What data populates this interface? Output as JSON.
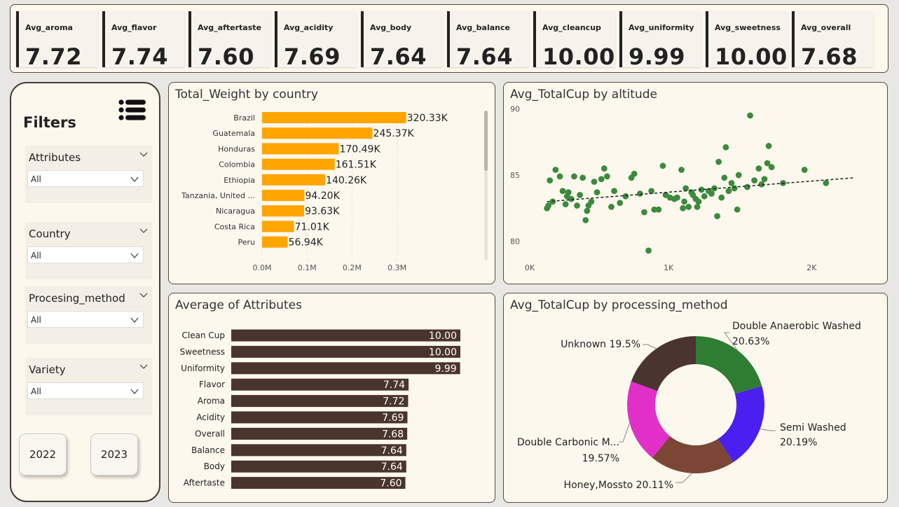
{
  "kpis": [
    {
      "label": "Avg_aroma",
      "value": "7.72"
    },
    {
      "label": "Avg_flavor",
      "value": "7.74"
    },
    {
      "label": "Avg_aftertaste",
      "value": "7.60"
    },
    {
      "label": "Avg_acidity",
      "value": "7.69"
    },
    {
      "label": "Avg_body",
      "value": "7.64"
    },
    {
      "label": "Avg_balance",
      "value": "7.64"
    },
    {
      "label": "Avg_cleancup",
      "value": "10.00"
    },
    {
      "label": "Avg_uniformity",
      "value": "9.99"
    },
    {
      "label": "Avg_sweetness",
      "value": "10.00"
    },
    {
      "label": "Avg_overall",
      "value": "7.68"
    }
  ],
  "filters": {
    "title": "Filters",
    "icon": "list-icon",
    "slicers": [
      {
        "title": "Attributes",
        "value": "All"
      },
      {
        "title": "Country",
        "value": "All"
      },
      {
        "title": "Procesing_method",
        "value": "All"
      },
      {
        "title": "Variety",
        "value": "All"
      }
    ],
    "years": [
      "2022",
      "2023"
    ]
  },
  "panels": {
    "weight": {
      "title": "Total_Weight by country"
    },
    "scatter": {
      "title": "Avg_TotalCup by altitude"
    },
    "attributes": {
      "title": "Average of Attributes"
    },
    "donut": {
      "title": "Avg_TotalCup by processing_method"
    }
  },
  "chart_data": [
    {
      "type": "bar",
      "orientation": "horizontal",
      "title": "Total_Weight by country",
      "categories": [
        "Brazil",
        "Guatemala",
        "Honduras",
        "Colombia",
        "Ethiopia",
        "Tanzania, United ...",
        "Nicaragua",
        "Costa Rica",
        "Peru"
      ],
      "values": [
        320330,
        245370,
        170490,
        161510,
        140260,
        94200,
        93630,
        71010,
        56940
      ],
      "data_labels": [
        "320.33K",
        "245.37K",
        "170.49K",
        "161.51K",
        "140.26K",
        "94.20K",
        "93.63K",
        "71.01K",
        "56.94K"
      ],
      "xticks": [
        "0.0M",
        "0.1M",
        "0.2M",
        "0.3M"
      ],
      "xlim": [
        0,
        380000
      ],
      "color": "#ffa500",
      "grid": true
    },
    {
      "type": "scatter",
      "title": "Avg_TotalCup by altitude",
      "xticks": [
        "0K",
        "1K",
        "2K"
      ],
      "yticks": [
        "80",
        "85",
        "90"
      ],
      "xlim": [
        0,
        2400
      ],
      "ylim": [
        78.5,
        90.5
      ],
      "color": "#3d8a3d",
      "trendline": {
        "style": "dashed",
        "x": [
          150,
          2300
        ],
        "y": [
          83.0,
          84.8
        ]
      },
      "points": [
        [
          150,
          82.5
        ],
        [
          160,
          82.7
        ],
        [
          170,
          84.6
        ],
        [
          190,
          83.0
        ],
        [
          210,
          85.4
        ],
        [
          240,
          84.9
        ],
        [
          260,
          83.8
        ],
        [
          280,
          82.8
        ],
        [
          290,
          83.4
        ],
        [
          300,
          83.7
        ],
        [
          320,
          83.2
        ],
        [
          340,
          84.9
        ],
        [
          360,
          82.7
        ],
        [
          380,
          83.5
        ],
        [
          400,
          84.8
        ],
        [
          420,
          81.6
        ],
        [
          430,
          82.3
        ],
        [
          440,
          82.7
        ],
        [
          460,
          83.0
        ],
        [
          480,
          84.5
        ],
        [
          500,
          83.7
        ],
        [
          530,
          84.7
        ],
        [
          550,
          85.5
        ],
        [
          570,
          84.9
        ],
        [
          600,
          82.6
        ],
        [
          620,
          83.8
        ],
        [
          660,
          82.9
        ],
        [
          700,
          83.4
        ],
        [
          740,
          84.8
        ],
        [
          760,
          85.1
        ],
        [
          800,
          83.6
        ],
        [
          830,
          82.2
        ],
        [
          860,
          79.3
        ],
        [
          880,
          83.8
        ],
        [
          900,
          82.4
        ],
        [
          930,
          82.4
        ],
        [
          960,
          85.7
        ],
        [
          980,
          83.5
        ],
        [
          1010,
          83.3
        ],
        [
          1040,
          83.2
        ],
        [
          1060,
          83.3
        ],
        [
          1090,
          85.4
        ],
        [
          1100,
          82.5
        ],
        [
          1110,
          83.0
        ],
        [
          1120,
          84.0
        ],
        [
          1140,
          82.6
        ],
        [
          1160,
          83.7
        ],
        [
          1170,
          83.5
        ],
        [
          1190,
          83.2
        ],
        [
          1200,
          82.6
        ],
        [
          1210,
          83.0
        ],
        [
          1230,
          83.9
        ],
        [
          1250,
          83.4
        ],
        [
          1280,
          83.8
        ],
        [
          1300,
          83.6
        ],
        [
          1320,
          84.0
        ],
        [
          1340,
          81.9
        ],
        [
          1350,
          86.0
        ],
        [
          1370,
          83.3
        ],
        [
          1390,
          84.8
        ],
        [
          1400,
          87.1
        ],
        [
          1420,
          83.8
        ],
        [
          1440,
          84.4
        ],
        [
          1460,
          84.0
        ],
        [
          1480,
          82.4
        ],
        [
          1490,
          85.0
        ],
        [
          1550,
          84.1
        ],
        [
          1570,
          89.5
        ],
        [
          1600,
          84.6
        ],
        [
          1630,
          85.5
        ],
        [
          1650,
          84.3
        ],
        [
          1670,
          84.7
        ],
        [
          1690,
          85.9
        ],
        [
          1700,
          87.2
        ],
        [
          1720,
          85.6
        ],
        [
          1800,
          84.4
        ],
        [
          1950,
          85.4
        ],
        [
          2100,
          84.4
        ]
      ]
    },
    {
      "type": "bar",
      "orientation": "horizontal",
      "title": "Average of Attributes",
      "categories": [
        "Clean Cup",
        "Sweetness",
        "Uniformity",
        "Flavor",
        "Aroma",
        "Acidity",
        "Overall",
        "Balance",
        "Body",
        "Aftertaste"
      ],
      "values": [
        10.0,
        10.0,
        9.99,
        7.74,
        7.72,
        7.69,
        7.68,
        7.64,
        7.64,
        7.6
      ],
      "data_labels": [
        "10.00",
        "10.00",
        "9.99",
        "7.74",
        "7.72",
        "7.69",
        "7.68",
        "7.64",
        "7.64",
        "7.60"
      ],
      "xlim": [
        0,
        10
      ],
      "color": "#4a342e",
      "grid": false
    },
    {
      "type": "pie",
      "donut": true,
      "title": "Avg_TotalCup by processing_method",
      "categories": [
        "Double Anaerobic Washed",
        "Semi Washed",
        "Honey,Mossto",
        "Double Carbonic M...",
        "Unknown"
      ],
      "values": [
        20.63,
        20.19,
        20.11,
        19.57,
        19.5
      ],
      "labels": [
        "20.63%",
        "20.19%",
        "20.11%",
        "19.57%",
        "19.5%"
      ],
      "colors": [
        "#2e7d32",
        "#4a1ff0",
        "#7b4636",
        "#e030c8",
        "#4a3430"
      ]
    }
  ]
}
